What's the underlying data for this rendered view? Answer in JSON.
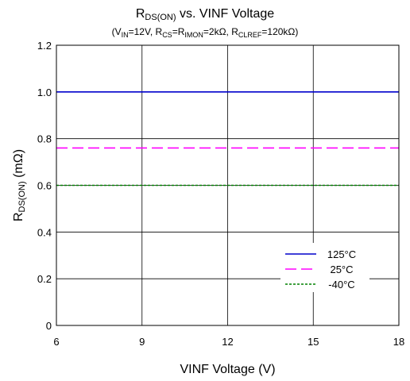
{
  "chart_data": {
    "type": "line",
    "title": {
      "main": "R",
      "main_sub": "DS(ON)",
      "main_rest": " vs. VINF Voltage"
    },
    "subtitle_parts": [
      {
        "t": "(V",
        "sub": false
      },
      {
        "t": "IN",
        "sub": true
      },
      {
        "t": "=12V, R",
        "sub": false
      },
      {
        "t": "CS",
        "sub": true
      },
      {
        "t": "=R",
        "sub": false
      },
      {
        "t": "IMON",
        "sub": true
      },
      {
        "t": "=2kΩ, R",
        "sub": false
      },
      {
        "t": "CLREF",
        "sub": true
      },
      {
        "t": "=120kΩ)",
        "sub": false
      }
    ],
    "xlabel": "VINF Voltage (V)",
    "ylabel": {
      "main": "R",
      "sub": "DS(ON)",
      "rest": " (mΩ)"
    },
    "xlim": [
      6,
      18
    ],
    "ylim": [
      0,
      1.2
    ],
    "x_ticks": [
      "6",
      "9",
      "12",
      "15",
      "18"
    ],
    "y_ticks": [
      "0",
      "0.2",
      "0.4",
      "0.6",
      "0.8",
      "1.0",
      "1.2"
    ],
    "grid": true,
    "legend_position": "bottom-right",
    "series": [
      {
        "name": "125°C",
        "x": [
          6,
          18
        ],
        "values": [
          1.0,
          1.0
        ],
        "color": "#0000cc",
        "dash": "solid"
      },
      {
        "name": "25°C",
        "x": [
          6,
          18
        ],
        "values": [
          0.76,
          0.76
        ],
        "color": "#ff00ff",
        "dash": "dashed"
      },
      {
        "name": "-40°C",
        "x": [
          6,
          18
        ],
        "values": [
          0.6,
          0.6
        ],
        "color": "#008000",
        "dash": "dotted"
      }
    ]
  }
}
